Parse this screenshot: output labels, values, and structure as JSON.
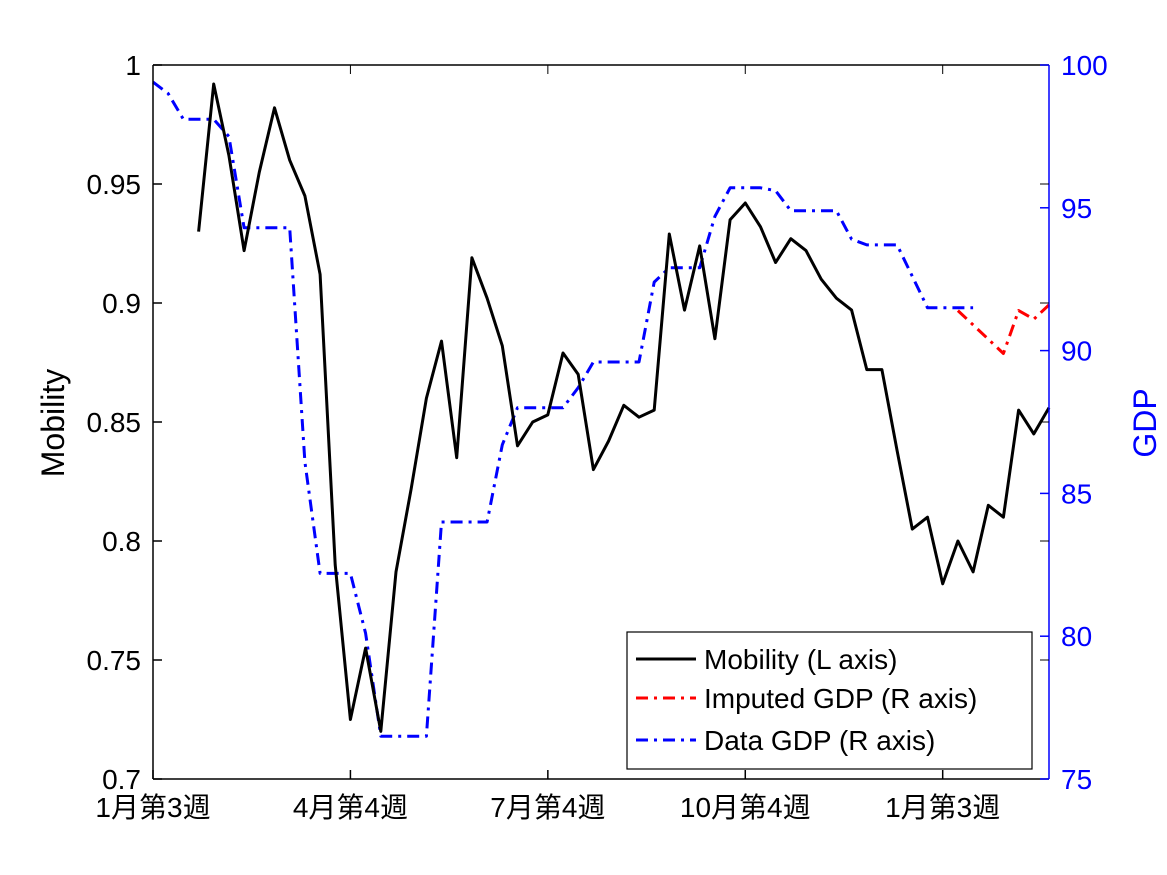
{
  "chart_data": {
    "type": "line",
    "title": "",
    "x_tick_labels": [
      {
        "x": 0,
        "label": "1月第3週"
      },
      {
        "x": 13,
        "label": "4月第4週"
      },
      {
        "x": 26,
        "label": "7月第4週"
      },
      {
        "x": 39,
        "label": "10月第4週"
      },
      {
        "x": 52,
        "label": "1月第3週"
      }
    ],
    "xlim": [
      0,
      59
    ],
    "left_axis": {
      "label": "Mobility",
      "ylim": [
        0.7,
        1.0
      ],
      "ticks": [
        "0.7",
        "0.75",
        "0.8",
        "0.85",
        "0.9",
        "0.95",
        "1"
      ],
      "color": "#000000"
    },
    "right_axis": {
      "label": "GDP",
      "ylim": [
        75,
        100
      ],
      "ticks": [
        "75",
        "80",
        "85",
        "90",
        "95",
        "100"
      ],
      "color": "#0000ff"
    },
    "series": [
      {
        "name": "Mobility (L axis)",
        "axis": "left",
        "color": "#000000",
        "dash": "solid",
        "points": [
          [
            3,
            0.93
          ],
          [
            4,
            0.992
          ],
          [
            5,
            0.962
          ],
          [
            6,
            0.922
          ],
          [
            7,
            0.955
          ],
          [
            8,
            0.982
          ],
          [
            9,
            0.96
          ],
          [
            10,
            0.945
          ],
          [
            11,
            0.912
          ],
          [
            12,
            0.79
          ],
          [
            13,
            0.725
          ],
          [
            14,
            0.755
          ],
          [
            15,
            0.72
          ],
          [
            16,
            0.787
          ],
          [
            17,
            0.822
          ],
          [
            18,
            0.86
          ],
          [
            19,
            0.884
          ],
          [
            20,
            0.835
          ],
          [
            21,
            0.919
          ],
          [
            22,
            0.902
          ],
          [
            23,
            0.882
          ],
          [
            24,
            0.84
          ],
          [
            25,
            0.85
          ],
          [
            26,
            0.853
          ],
          [
            27,
            0.879
          ],
          [
            28,
            0.87
          ],
          [
            29,
            0.83
          ],
          [
            30,
            0.842
          ],
          [
            31,
            0.857
          ],
          [
            32,
            0.852
          ],
          [
            33,
            0.855
          ],
          [
            34,
            0.929
          ],
          [
            35,
            0.897
          ],
          [
            36,
            0.924
          ],
          [
            37,
            0.885
          ],
          [
            38,
            0.935
          ],
          [
            39,
            0.942
          ],
          [
            40,
            0.932
          ],
          [
            41,
            0.917
          ],
          [
            42,
            0.927
          ],
          [
            43,
            0.922
          ],
          [
            44,
            0.91
          ],
          [
            45,
            0.902
          ],
          [
            46,
            0.897
          ],
          [
            47,
            0.872
          ],
          [
            48,
            0.872
          ],
          [
            49,
            0.838
          ],
          [
            50,
            0.805
          ],
          [
            51,
            0.81
          ],
          [
            52,
            0.782
          ],
          [
            53,
            0.8
          ],
          [
            54,
            0.787
          ],
          [
            55,
            0.815
          ],
          [
            56,
            0.81
          ],
          [
            57,
            0.855
          ],
          [
            58,
            0.845
          ],
          [
            59,
            0.856
          ]
        ]
      },
      {
        "name": "Imputed GDP (R axis)",
        "axis": "right",
        "color": "#ff0000",
        "dash": "dashdot",
        "points": [
          [
            53,
            91.4
          ],
          [
            54,
            90.9
          ],
          [
            55,
            90.4
          ],
          [
            56,
            89.9
          ],
          [
            57,
            91.4
          ],
          [
            58,
            91.1
          ],
          [
            59,
            91.6
          ]
        ]
      },
      {
        "name": "Data GDP (R axis)",
        "axis": "right",
        "color": "#0000ff",
        "dash": "dashdot",
        "points": [
          [
            0,
            99.4
          ],
          [
            1,
            99.0
          ],
          [
            2,
            98.1
          ],
          [
            3,
            98.1
          ],
          [
            4,
            98.1
          ],
          [
            5,
            97.5
          ],
          [
            6,
            94.3
          ],
          [
            7,
            94.3
          ],
          [
            8,
            94.3
          ],
          [
            9,
            94.3
          ],
          [
            10,
            86.1
          ],
          [
            11,
            82.2
          ],
          [
            12,
            82.2
          ],
          [
            13,
            82.2
          ],
          [
            14,
            80.1
          ],
          [
            15,
            76.5
          ],
          [
            16,
            76.5
          ],
          [
            17,
            76.5
          ],
          [
            18,
            76.5
          ],
          [
            19,
            84.0
          ],
          [
            20,
            84.0
          ],
          [
            21,
            84.0
          ],
          [
            22,
            84.0
          ],
          [
            23,
            86.7
          ],
          [
            24,
            88.0
          ],
          [
            25,
            88.0
          ],
          [
            26,
            88.0
          ],
          [
            27,
            88.0
          ],
          [
            28,
            88.7
          ],
          [
            29,
            89.6
          ],
          [
            30,
            89.6
          ],
          [
            31,
            89.6
          ],
          [
            32,
            89.6
          ],
          [
            33,
            92.4
          ],
          [
            34,
            92.9
          ],
          [
            35,
            92.9
          ],
          [
            36,
            92.9
          ],
          [
            37,
            94.7
          ],
          [
            38,
            95.7
          ],
          [
            39,
            95.7
          ],
          [
            40,
            95.7
          ],
          [
            41,
            95.6
          ],
          [
            42,
            94.9
          ],
          [
            43,
            94.9
          ],
          [
            44,
            94.9
          ],
          [
            45,
            94.9
          ],
          [
            46,
            93.9
          ],
          [
            47,
            93.7
          ],
          [
            48,
            93.7
          ],
          [
            49,
            93.7
          ],
          [
            50,
            92.6
          ],
          [
            51,
            91.5
          ],
          [
            52,
            91.5
          ],
          [
            53,
            91.5
          ],
          [
            54,
            91.5
          ]
        ]
      }
    ],
    "legend": {
      "position": "bottom-right",
      "entries": [
        "Mobility (L axis)",
        "Imputed GDP (R axis)",
        "Data GDP (R axis)"
      ]
    },
    "grid": false
  }
}
